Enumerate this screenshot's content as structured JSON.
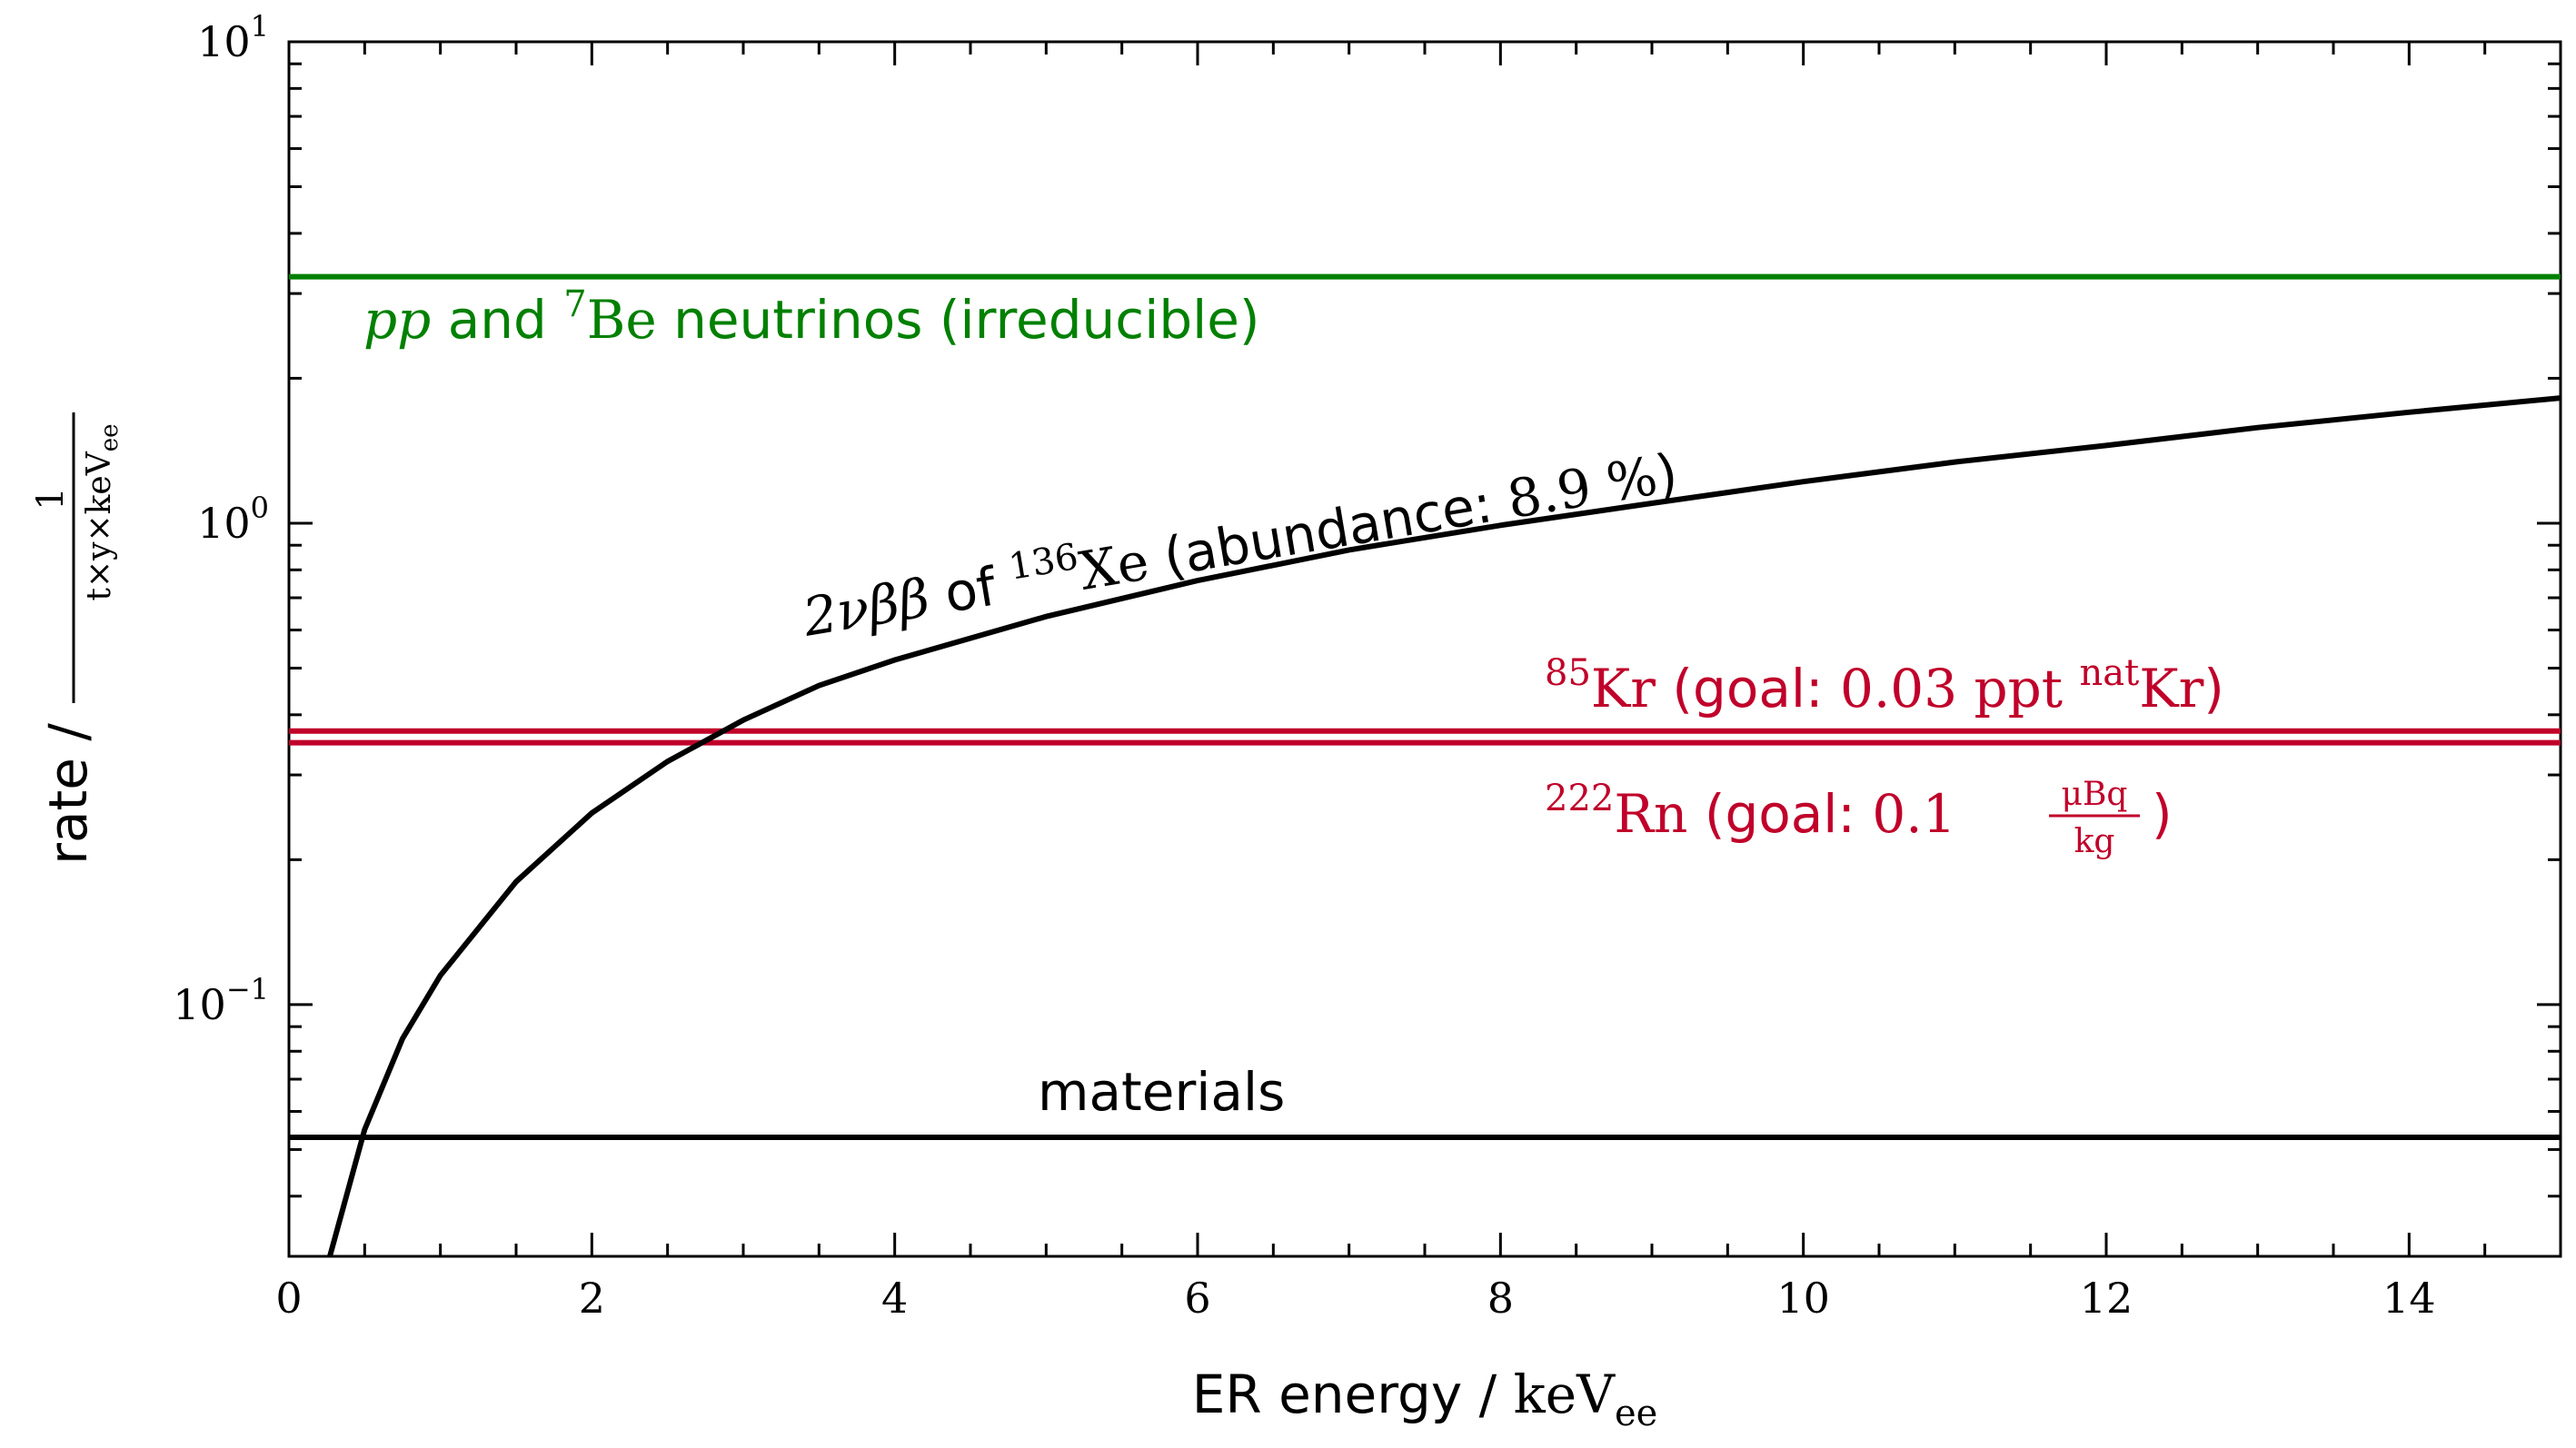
{
  "chart_data": {
    "type": "line",
    "title": "",
    "xlabel": {
      "prefix": "ER energy / ",
      "unit": "keV",
      "unit_sub": "ee"
    },
    "ylabel": {
      "prefix": "rate / ",
      "frac_num": "1",
      "frac_den": "t×y×keV",
      "frac_den_sub": "ee"
    },
    "xlim": [
      0,
      15
    ],
    "ylim": [
      0.03,
      10
    ],
    "yscale": "log",
    "grid": false,
    "x_ticks": [
      "0",
      "2",
      "4",
      "6",
      "8",
      "10",
      "12",
      "14"
    ],
    "y_ticks": [
      {
        "value": 10,
        "base": "10",
        "exp": "1"
      },
      {
        "value": 1,
        "base": "10",
        "exp": "0"
      },
      {
        "value": 0.1,
        "base": "10",
        "exp": "−1"
      }
    ],
    "colors": {
      "neutrino": "#008000",
      "radon_krypton": "#c0002a",
      "xenon": "#000000",
      "materials": "#000000"
    },
    "series": [
      {
        "key": "neutrino",
        "style": "constant",
        "value": 3.25
      },
      {
        "key": "krypton",
        "style": "constant",
        "value": 0.37
      },
      {
        "key": "radon",
        "style": "constant",
        "value": 0.35
      },
      {
        "key": "materials",
        "style": "constant",
        "value": 0.053
      },
      {
        "key": "xenon",
        "style": "curve",
        "x": [
          0.27,
          0.5,
          0.75,
          1.0,
          1.5,
          2.0,
          2.5,
          3.0,
          3.5,
          4.0,
          5.0,
          6.0,
          7.0,
          8.0,
          9.0,
          10.0,
          11.0,
          12.0,
          13.0,
          14.0,
          15.0
        ],
        "y": [
          0.03,
          0.055,
          0.085,
          0.115,
          0.18,
          0.25,
          0.32,
          0.39,
          0.46,
          0.52,
          0.64,
          0.76,
          0.88,
          0.99,
          1.1,
          1.22,
          1.34,
          1.45,
          1.58,
          1.7,
          1.82
        ]
      }
    ],
    "annotations": {
      "neutrino": {
        "italic": "pp",
        "t1": " and ",
        "sup": "7",
        "t2": "Be",
        "t3": " neutrinos (irreducible)"
      },
      "xenon": {
        "t1": "2νββ",
        "t2": " of ",
        "sup": "136",
        "t3": "Xe",
        "t4": " (abundance: ",
        "t5": "8.9 %",
        "t6": ")"
      },
      "krypton": {
        "sup": "85",
        "t1": "Kr",
        "t2": " (goal: ",
        "t3": "0.03 ppt ",
        "sup2": "nat",
        "t4": "Kr",
        "t5": ")"
      },
      "radon": {
        "sup": "222",
        "t1": "Rn",
        "t2": " (goal: ",
        "t3": "0.1 ",
        "frac_num": "μBq",
        "frac_den": "kg",
        "t4": ")"
      },
      "materials": {
        "t1": "materials"
      }
    }
  }
}
